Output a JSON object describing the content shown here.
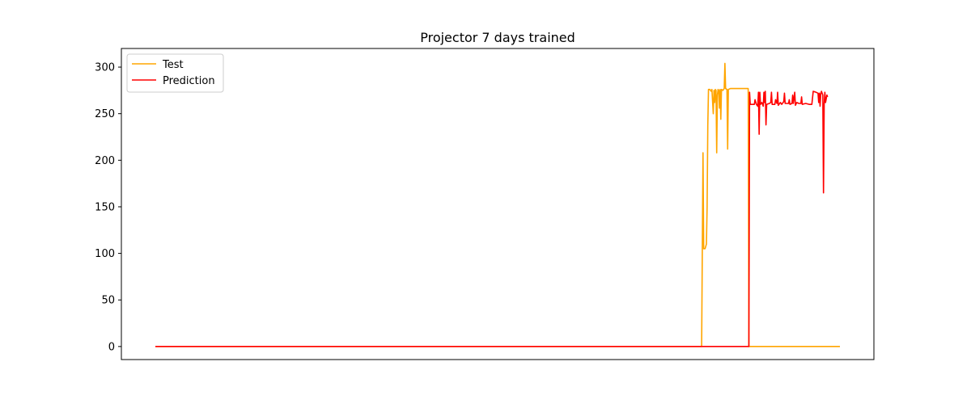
{
  "chart_data": {
    "type": "line",
    "title": "Projector 7 days trained",
    "xlabel": "",
    "ylabel": "",
    "xlim": [
      0,
      1000
    ],
    "ylim": [
      -14,
      320
    ],
    "yticks": [
      0,
      50,
      100,
      150,
      200,
      250,
      300
    ],
    "x_tick_labels_shown": false,
    "grid": false,
    "legend_position": "top-left",
    "series": [
      {
        "name": "Test",
        "color": "#ffa500",
        "points": [
          [
            0,
            0
          ],
          [
            798,
            0
          ],
          [
            799,
            105
          ],
          [
            800,
            208
          ],
          [
            801,
            105
          ],
          [
            803,
            105
          ],
          [
            805,
            110
          ],
          [
            806,
            150
          ],
          [
            807,
            237
          ],
          [
            808,
            276
          ],
          [
            810,
            276
          ],
          [
            812,
            274
          ],
          [
            813,
            276
          ],
          [
            815,
            250
          ],
          [
            816,
            275
          ],
          [
            817,
            262
          ],
          [
            818,
            276
          ],
          [
            819,
            275
          ],
          [
            820,
            208
          ],
          [
            821,
            270
          ],
          [
            822,
            276
          ],
          [
            823,
            275
          ],
          [
            824,
            256
          ],
          [
            825,
            276
          ],
          [
            826,
            244
          ],
          [
            827,
            276
          ],
          [
            829,
            275
          ],
          [
            831,
            277
          ],
          [
            832,
            304
          ],
          [
            833,
            277
          ],
          [
            835,
            276
          ],
          [
            836,
            212
          ],
          [
            837,
            276
          ],
          [
            840,
            277
          ],
          [
            845,
            277
          ],
          [
            850,
            277
          ],
          [
            855,
            277
          ],
          [
            860,
            277
          ],
          [
            866,
            277
          ],
          [
            867,
            0
          ],
          [
            1000,
            0
          ]
        ]
      },
      {
        "name": "Prediction",
        "color": "#ff0000",
        "points": [
          [
            0,
            0
          ],
          [
            867,
            0
          ],
          [
            868,
            273
          ],
          [
            869,
            260
          ],
          [
            875,
            260
          ],
          [
            876,
            265
          ],
          [
            878,
            260
          ],
          [
            880,
            258
          ],
          [
            881,
            273
          ],
          [
            882,
            228
          ],
          [
            883,
            273
          ],
          [
            884,
            260
          ],
          [
            886,
            262
          ],
          [
            888,
            258
          ],
          [
            889,
            273
          ],
          [
            890,
            262
          ],
          [
            891,
            274
          ],
          [
            892,
            238
          ],
          [
            893,
            260
          ],
          [
            897,
            261
          ],
          [
            899,
            262
          ],
          [
            900,
            273
          ],
          [
            901,
            260
          ],
          [
            905,
            260
          ],
          [
            906,
            265
          ],
          [
            908,
            261
          ],
          [
            909,
            273
          ],
          [
            910,
            259
          ],
          [
            913,
            262
          ],
          [
            915,
            260
          ],
          [
            918,
            263
          ],
          [
            919,
            272
          ],
          [
            920,
            261
          ],
          [
            925,
            261
          ],
          [
            926,
            265
          ],
          [
            927,
            260
          ],
          [
            930,
            261
          ],
          [
            931,
            270
          ],
          [
            932,
            261
          ],
          [
            934,
            273
          ],
          [
            935,
            259
          ],
          [
            937,
            262
          ],
          [
            940,
            261
          ],
          [
            943,
            261
          ],
          [
            944,
            268
          ],
          [
            945,
            260
          ],
          [
            950,
            261
          ],
          [
            955,
            260
          ],
          [
            959,
            260
          ],
          [
            960,
            267
          ],
          [
            961,
            274
          ],
          [
            965,
            273
          ],
          [
            968,
            272
          ],
          [
            969,
            262
          ],
          [
            970,
            272
          ],
          [
            971,
            258
          ],
          [
            972,
            271
          ],
          [
            973,
            274
          ],
          [
            975,
            270
          ],
          [
            976,
            165
          ],
          [
            977,
            260
          ],
          [
            978,
            273
          ],
          [
            979,
            262
          ],
          [
            980,
            266
          ],
          [
            981,
            270
          ],
          [
            982,
            268
          ]
        ]
      }
    ]
  }
}
